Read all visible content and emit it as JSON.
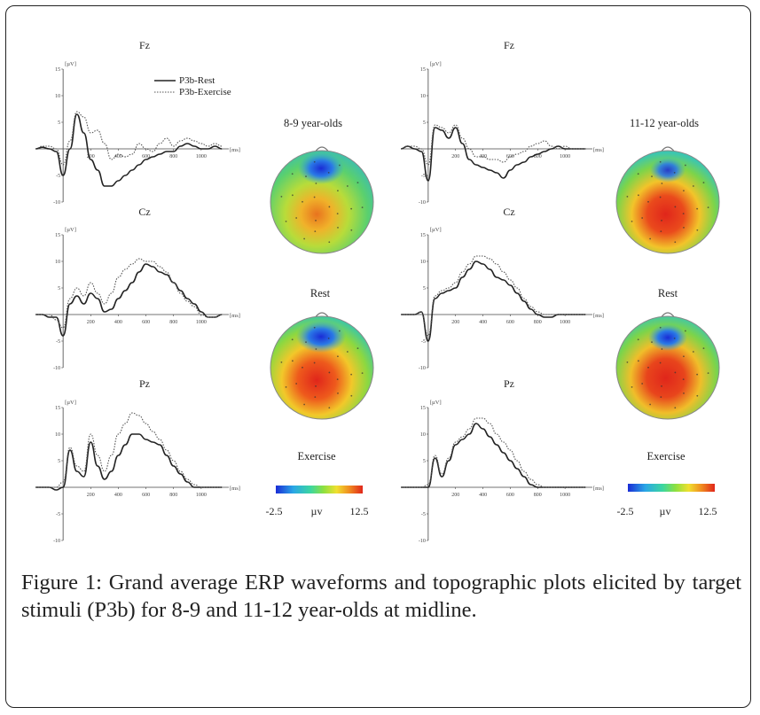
{
  "figure": {
    "caption_label": "Figure 1:",
    "caption_text": " Grand average ERP waveforms and topographic plots elicited by target stimuli (P3b) for 8-9 and 11-12 year-olds at midline."
  },
  "groups": [
    {
      "title": "8-9 year-olds",
      "topo_labels": [
        "Rest",
        "Exercise"
      ],
      "scale": {
        "min": "-2.5",
        "unit": "µv",
        "max": "12.5"
      }
    },
    {
      "title": "11-12  year-olds",
      "topo_labels": [
        "Rest",
        "Exercise"
      ],
      "scale": {
        "min": "-2.5",
        "unit": "µv",
        "max": "12.5"
      }
    }
  ],
  "colors": {
    "rest": "#222222",
    "exercise": "#555555",
    "scale_low": "#1a2cd6",
    "scale_high": "#e0261b"
  },
  "chart_data": [
    {
      "type": "line",
      "group": "8-9 year-olds",
      "title": "Fz",
      "ylabel": "[µV]",
      "xlabel": "[ms]",
      "xlim": [
        -200,
        1200
      ],
      "ylim": [
        -10,
        15
      ],
      "yticks": [
        "15",
        "10",
        "5",
        "-5",
        "-10"
      ],
      "xticks": [
        "200",
        "400",
        "600",
        "800",
        "1000"
      ],
      "legend": [
        "P3b-Rest",
        "P3b-Exercise"
      ],
      "x": [
        -200,
        -150,
        -100,
        -50,
        0,
        50,
        100,
        150,
        200,
        250,
        300,
        350,
        400,
        450,
        500,
        550,
        600,
        650,
        700,
        750,
        800,
        850,
        900,
        950,
        1000,
        1050,
        1100,
        1150
      ],
      "series": [
        {
          "name": "P3b-Rest",
          "values": [
            0,
            0.3,
            0,
            -0.5,
            -5,
            0,
            6.5,
            3,
            -2,
            -4,
            -7,
            -7,
            -6,
            -5,
            -4,
            -3,
            -2,
            -1.5,
            -1,
            -0.5,
            -0.5,
            0.5,
            1,
            0.5,
            0,
            0,
            0.5,
            0
          ]
        },
        {
          "name": "P3b-Exercise",
          "values": [
            0,
            0.5,
            0.5,
            0,
            -3,
            1.5,
            7,
            6,
            3,
            3.5,
            1,
            -2,
            -1,
            -1.5,
            -1,
            1,
            0,
            -0.5,
            1,
            2,
            0.5,
            1.5,
            2,
            1.5,
            1,
            0.5,
            1,
            0.5
          ]
        }
      ]
    },
    {
      "type": "line",
      "group": "8-9 year-olds",
      "title": "Cz",
      "ylabel": "[µV]",
      "xlabel": "[ms]",
      "xlim": [
        -200,
        1200
      ],
      "ylim": [
        -10,
        15
      ],
      "yticks": [
        "15",
        "10",
        "5",
        "-5",
        "-10"
      ],
      "xticks": [
        "200",
        "400",
        "600",
        "800",
        "1000"
      ],
      "x": [
        -200,
        -150,
        -100,
        -50,
        0,
        50,
        100,
        150,
        200,
        250,
        300,
        350,
        400,
        450,
        500,
        550,
        600,
        650,
        700,
        750,
        800,
        850,
        900,
        950,
        1000,
        1050,
        1100,
        1150
      ],
      "series": [
        {
          "name": "P3b-Rest",
          "values": [
            0,
            0,
            -0.5,
            -0.5,
            -4,
            2,
            3.5,
            2,
            4,
            3,
            0.5,
            1,
            3,
            4.5,
            6,
            8,
            9.5,
            9,
            8,
            7.5,
            6,
            4.5,
            3,
            2,
            0.5,
            -0.5,
            -0.5,
            0
          ]
        },
        {
          "name": "P3b-Exercise",
          "values": [
            0,
            0,
            0,
            -1,
            -2.5,
            3,
            5,
            3.5,
            6,
            4,
            2,
            4,
            7,
            8.5,
            9.5,
            10.5,
            10,
            10,
            9,
            8,
            6,
            4,
            2.5,
            1.5,
            0,
            -0.5,
            -0.5,
            0
          ]
        }
      ]
    },
    {
      "type": "line",
      "group": "8-9 year-olds",
      "title": "Pz",
      "ylabel": "[µV]",
      "xlabel": "[ms]",
      "xlim": [
        -200,
        1200
      ],
      "ylim": [
        -10,
        15
      ],
      "yticks": [
        "15",
        "10",
        "5",
        "-5",
        "-10"
      ],
      "xticks": [
        "200",
        "400",
        "600",
        "800",
        "1000"
      ],
      "x": [
        -200,
        -150,
        -100,
        -50,
        0,
        50,
        100,
        150,
        200,
        250,
        300,
        350,
        400,
        450,
        500,
        550,
        600,
        650,
        700,
        750,
        800,
        850,
        900,
        950,
        1000,
        1050,
        1100,
        1150
      ],
      "series": [
        {
          "name": "P3b-Rest",
          "values": [
            0,
            0,
            0,
            -0.5,
            0,
            7,
            3,
            2,
            8.5,
            4,
            1.5,
            3,
            6,
            8,
            10,
            10,
            9,
            8.5,
            8,
            6,
            4,
            2.5,
            1,
            0,
            0,
            0,
            0,
            0
          ]
        },
        {
          "name": "P3b-Exercise",
          "values": [
            0,
            0,
            0,
            0,
            1,
            7.5,
            4,
            3,
            10,
            6,
            3,
            6,
            10,
            12,
            14,
            13.5,
            12,
            10.5,
            9,
            7,
            5,
            3,
            1.5,
            0.5,
            0,
            0,
            0,
            0
          ]
        }
      ]
    },
    {
      "type": "line",
      "group": "11-12  year-olds",
      "title": "Fz",
      "ylabel": "[µV]",
      "xlabel": "[ms]",
      "xlim": [
        -200,
        1200
      ],
      "ylim": [
        -10,
        15
      ],
      "yticks": [
        "15",
        "10",
        "5",
        "-5",
        "-10"
      ],
      "xticks": [
        "200",
        "400",
        "600",
        "800",
        "1000"
      ],
      "x": [
        -200,
        -150,
        -100,
        -50,
        0,
        50,
        100,
        150,
        200,
        250,
        300,
        350,
        400,
        450,
        500,
        550,
        600,
        650,
        700,
        750,
        800,
        850,
        900,
        950,
        1000,
        1050,
        1100,
        1150
      ],
      "series": [
        {
          "name": "P3b-Rest",
          "values": [
            0,
            0.5,
            0,
            -0.5,
            -6,
            4,
            3.5,
            2,
            4,
            1,
            -2,
            -3,
            -3.5,
            -4,
            -4.5,
            -5.5,
            -4,
            -3,
            -2.5,
            -1.5,
            -1,
            -0.5,
            0,
            0.5,
            0,
            0,
            0,
            0
          ]
        },
        {
          "name": "P3b-Exercise",
          "values": [
            0,
            0.5,
            0.5,
            0,
            -3,
            4.5,
            4,
            3,
            4.5,
            2,
            0,
            -1.5,
            -1.5,
            -2,
            -2,
            -2.5,
            -1.5,
            -1,
            -0.5,
            0.5,
            1,
            1.5,
            0.5,
            0,
            0.5,
            0,
            0,
            0
          ]
        }
      ]
    },
    {
      "type": "line",
      "group": "11-12  year-olds",
      "title": "Cz",
      "ylabel": "[µV]",
      "xlabel": "[ms]",
      "xlim": [
        -200,
        1200
      ],
      "ylim": [
        -10,
        15
      ],
      "yticks": [
        "15",
        "10",
        "5",
        "-5",
        "-10"
      ],
      "xticks": [
        "200",
        "400",
        "600",
        "800",
        "1000"
      ],
      "x": [
        -200,
        -150,
        -100,
        -50,
        0,
        50,
        100,
        150,
        200,
        250,
        300,
        350,
        400,
        450,
        500,
        550,
        600,
        650,
        700,
        750,
        800,
        850,
        900,
        950,
        1000,
        1050,
        1100,
        1150
      ],
      "series": [
        {
          "name": "P3b-Rest",
          "values": [
            0,
            0,
            0,
            0.5,
            -5,
            3,
            4,
            4.5,
            5,
            7,
            8.5,
            10,
            9.5,
            8.5,
            7,
            6.5,
            5.5,
            4,
            2.5,
            1,
            0,
            -0.5,
            -0.5,
            0,
            0,
            0,
            0,
            0
          ]
        },
        {
          "name": "P3b-Exercise",
          "values": [
            0,
            0,
            0,
            0.5,
            -4,
            3.5,
            4.5,
            5,
            6,
            8,
            9.5,
            11,
            11,
            10.5,
            9.5,
            8,
            6.5,
            5,
            3,
            1.5,
            0.5,
            0,
            0,
            0,
            0,
            0,
            0,
            0
          ]
        }
      ]
    },
    {
      "type": "line",
      "group": "11-12  year-olds",
      "title": "Pz",
      "ylabel": "[µV]",
      "xlabel": "[ms]",
      "xlim": [
        -200,
        1200
      ],
      "ylim": [
        -10,
        15
      ],
      "yticks": [
        "15",
        "10",
        "5",
        "-5",
        "-10"
      ],
      "xticks": [
        "200",
        "400",
        "600",
        "800",
        "1000"
      ],
      "x": [
        -200,
        -150,
        -100,
        -50,
        0,
        50,
        100,
        150,
        200,
        250,
        300,
        350,
        400,
        450,
        500,
        550,
        600,
        650,
        700,
        750,
        800,
        850,
        900,
        950,
        1000,
        1050,
        1100,
        1150
      ],
      "series": [
        {
          "name": "P3b-Rest",
          "values": [
            0,
            0,
            0,
            0,
            0,
            5.5,
            2,
            5,
            8,
            9,
            10,
            12,
            11,
            9.5,
            8,
            6.5,
            5,
            3.5,
            2,
            0.5,
            0,
            0,
            0,
            0,
            0,
            0,
            0,
            0
          ]
        },
        {
          "name": "P3b-Exercise",
          "values": [
            0,
            0,
            0,
            0,
            0.5,
            6,
            2.5,
            5.5,
            8.5,
            9.5,
            11,
            13,
            13,
            12,
            10,
            8.5,
            7,
            5,
            3,
            1.5,
            0.5,
            0,
            0,
            0,
            0,
            0,
            0,
            0
          ]
        }
      ]
    }
  ]
}
